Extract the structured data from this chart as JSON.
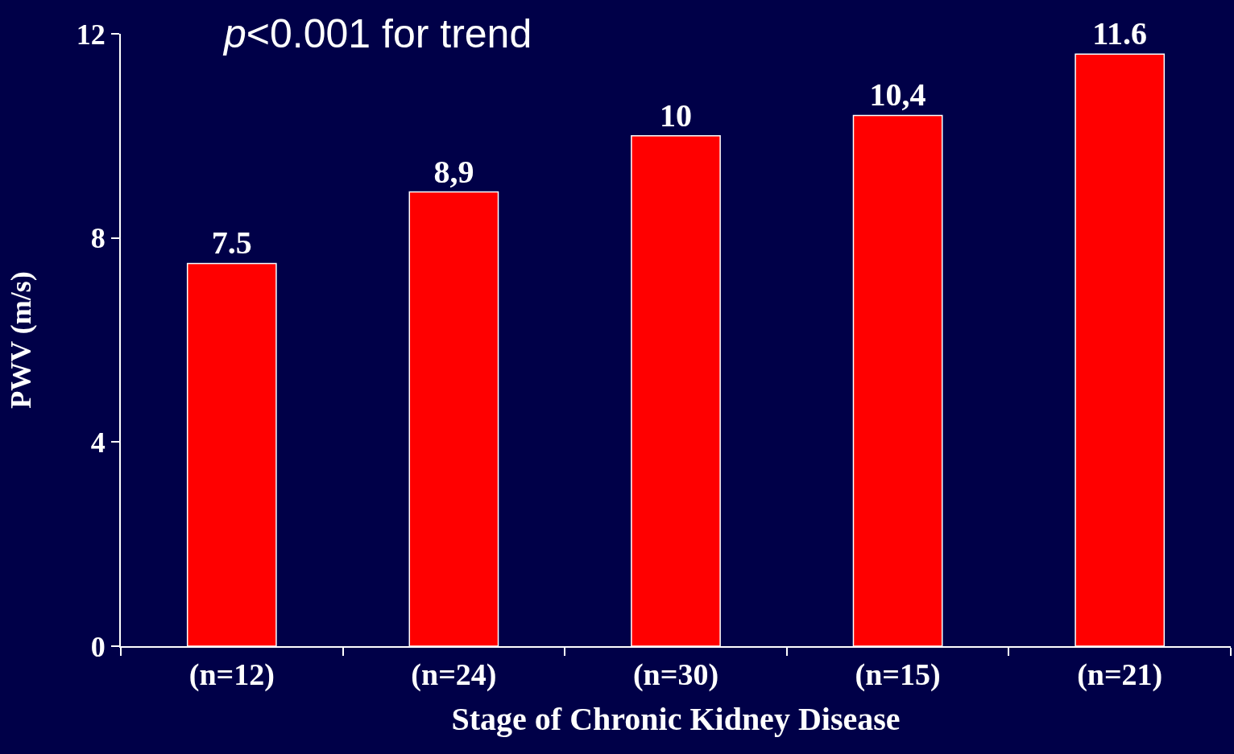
{
  "chart_data": {
    "type": "bar",
    "categories": [
      "(n=12)",
      "(n=24)",
      "(n=30)",
      "(n=15)",
      "(n=21)"
    ],
    "values": [
      7.5,
      8.9,
      10,
      10.4,
      11.6
    ],
    "value_labels": [
      "7.5",
      "8,9",
      "10",
      "10,4",
      "11.6"
    ],
    "color": "#ff0000",
    "ylim": [
      0,
      12
    ],
    "yticks": [
      0,
      4,
      8,
      12
    ],
    "xlabel": "Stage of Chronic Kidney Disease",
    "ylabel": "PWV (m/s)",
    "annotations": [
      "p<0.001 for trend"
    ],
    "grid": false
  }
}
